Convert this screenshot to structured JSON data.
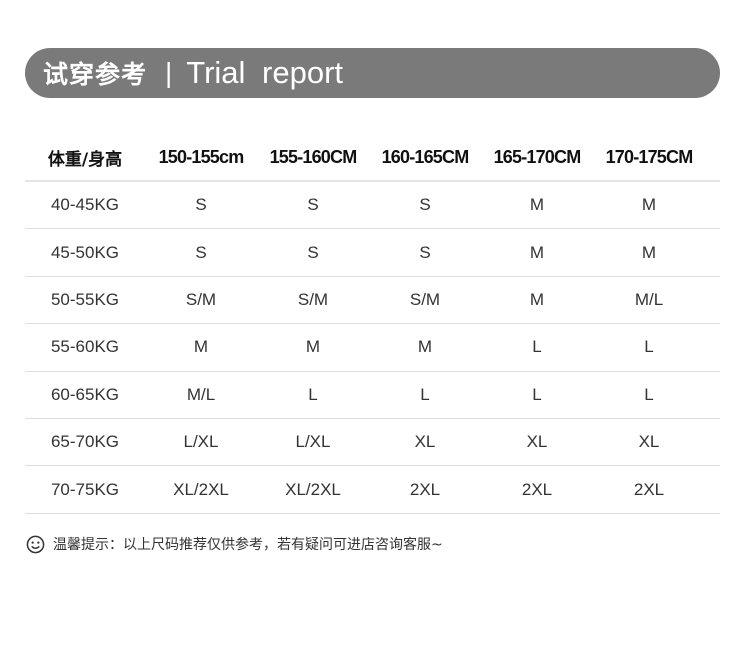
{
  "banner": {
    "title_cn": "试穿参考",
    "separator": "|",
    "title_en": "Trial report",
    "color": "#7a7a7a"
  },
  "table": {
    "headers": [
      "体重/身高",
      "150-155cm",
      "155-160CM",
      "160-165CM",
      "165-170CM",
      "170-175CM"
    ],
    "rows": [
      [
        "40-45KG",
        "S",
        "S",
        "S",
        "M",
        "M"
      ],
      [
        "45-50KG",
        "S",
        "S",
        "S",
        "M",
        "M"
      ],
      [
        "50-55KG",
        "S/M",
        "S/M",
        "S/M",
        "M",
        "M/L"
      ],
      [
        "55-60KG",
        "M",
        "M",
        "M",
        "L",
        "L"
      ],
      [
        "60-65KG",
        "M/L",
        "L",
        "L",
        "L",
        "L"
      ],
      [
        "65-70KG",
        "L/XL",
        "L/XL",
        "XL",
        "XL",
        "XL"
      ],
      [
        "70-75KG",
        "XL/2XL",
        "XL/2XL",
        "2XL",
        "2XL",
        "2XL"
      ]
    ]
  },
  "note": {
    "icon": "smiley-icon",
    "text": "温馨提示：以上尺码推荐仅供参考，若有疑问可进店咨询客服~"
  }
}
